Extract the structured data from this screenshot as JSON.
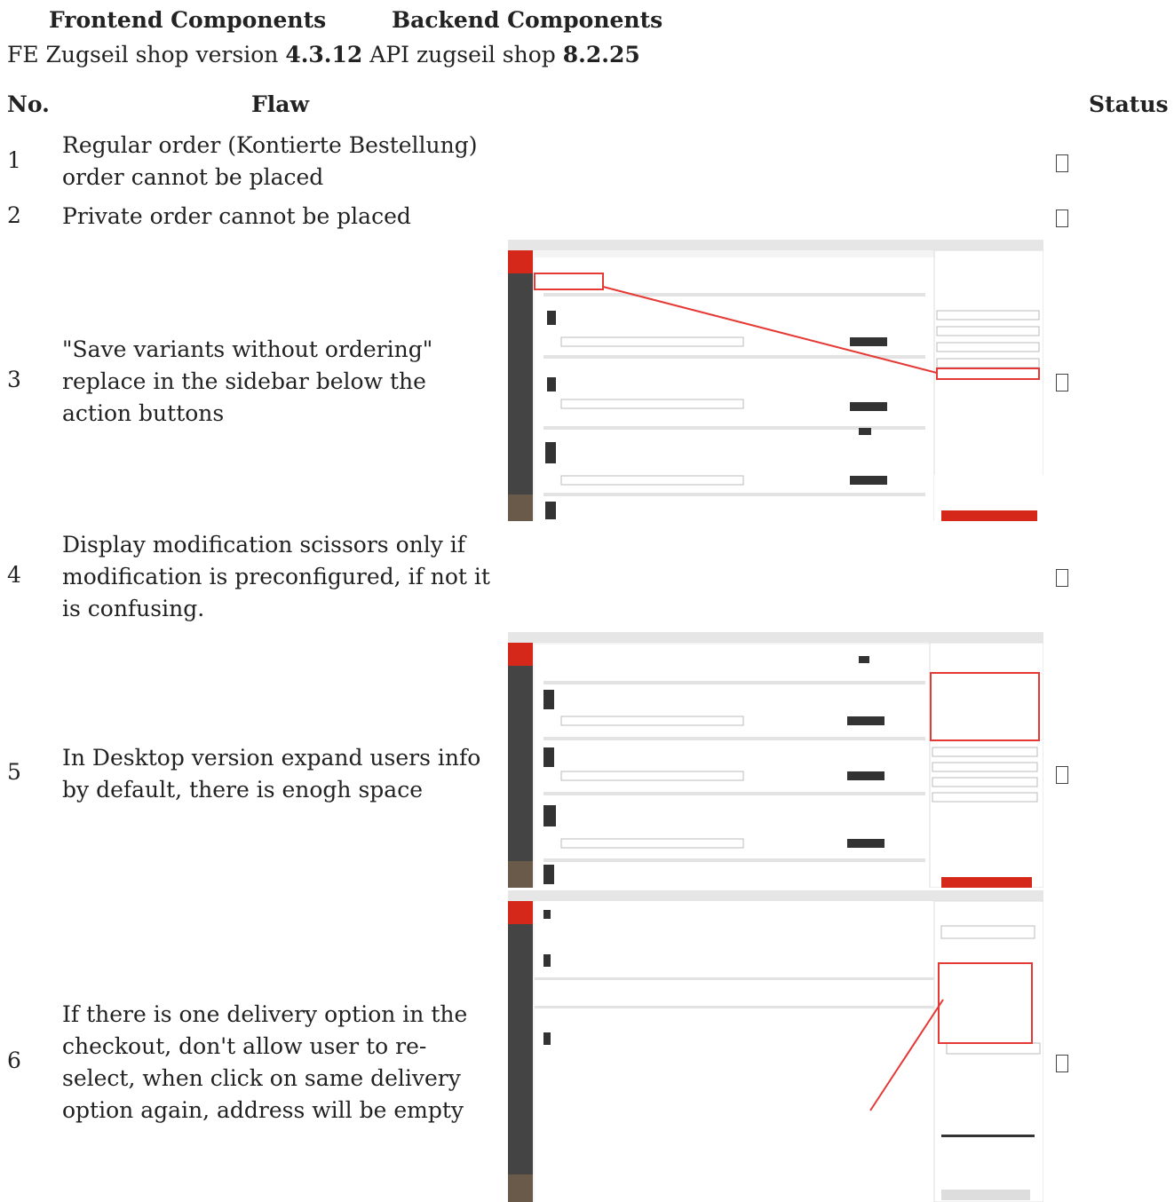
{
  "header": {
    "frontend": "Frontend Components",
    "backend": "Backend Components"
  },
  "versions": {
    "fe_label": "FE Zugseil shop version",
    "fe_version": "4.3.12",
    "api_label": "API zugseil shop",
    "api_version": "8.2.25"
  },
  "table": {
    "columns": [
      "No.",
      "Flaw",
      "Status"
    ],
    "rows": [
      [
        "1",
        "Regular order (Kontierte Bestellung) order cannot be placed"
      ],
      [
        "2",
        "Private order cannot be placed"
      ],
      [
        "3",
        "\"Save variants without ordering\" replace in the sidebar below the action buttons"
      ],
      [
        "4",
        "Display modification scissors only if modification is preconfigured, if not it is confusing."
      ],
      [
        "5",
        "In Desktop version expand users info by default, there is enogh space"
      ],
      [
        "6",
        "If there is one delivery option in the checkout, don't allow user to re-select, when click on same delivery option again, address will be empty"
      ]
    ]
  }
}
